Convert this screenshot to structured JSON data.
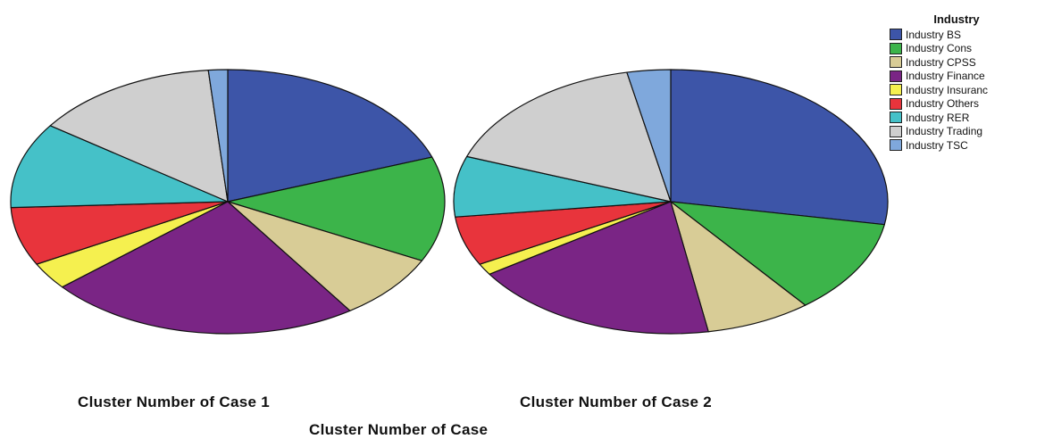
{
  "chart_data": {
    "type": "pie",
    "xlabel": "Cluster Number of Case",
    "legend": {
      "title": "Industry",
      "placement": "top-right",
      "entries": [
        {
          "name": "Industry BS",
          "color": "#3d55a8"
        },
        {
          "name": "Industry Cons",
          "color": "#3cb44a"
        },
        {
          "name": "Industry CPSS",
          "color": "#d8cc96"
        },
        {
          "name": "Industry Finance",
          "color": "#7a2585"
        },
        {
          "name": "Industry Insuranc",
          "color": "#f5f04f"
        },
        {
          "name": "Industry Others",
          "color": "#e8343c"
        },
        {
          "name": "Industry RER",
          "color": "#45c1c8"
        },
        {
          "name": "Industry Trading",
          "color": "#cfcfcf"
        },
        {
          "name": "Industry TSC",
          "color": "#7fa8dc"
        }
      ]
    },
    "pies": [
      {
        "label": "Cluster Number of Case 1",
        "values": [
          20.5,
          13.5,
          8.5,
          24.5,
          3.5,
          7.5,
          11.0,
          14.5,
          1.5
        ]
      },
      {
        "label": "Cluster Number of Case 2",
        "values": [
          30.0,
          12.5,
          8.5,
          20.0,
          1.5,
          6.5,
          8.0,
          17.5,
          3.5
        ]
      }
    ]
  }
}
